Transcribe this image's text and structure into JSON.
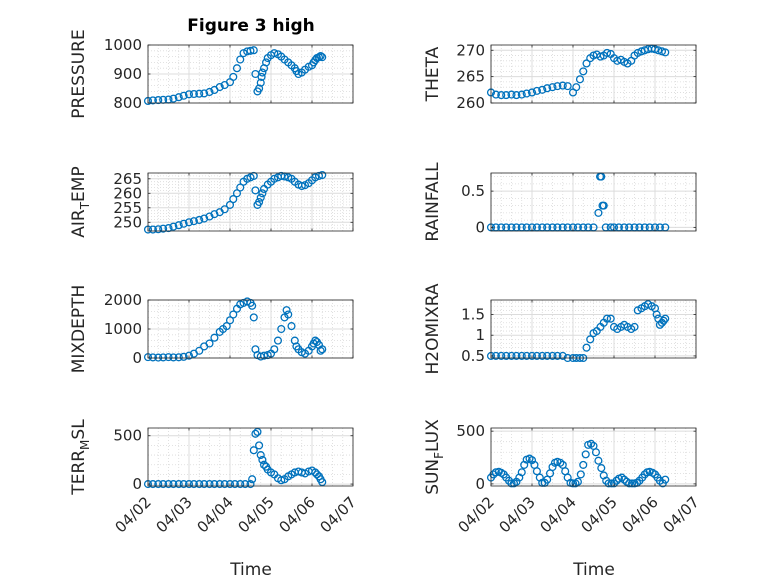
{
  "figure": {
    "title": "Figure 3 high",
    "xlabel": "Time",
    "marker_color": "#0072bd"
  },
  "chart_data": [
    {
      "type": "scatter",
      "ylabel": "PRESSURE",
      "ylabel_sub": "",
      "ylabel_post": "",
      "ylim": [
        800,
        1000
      ],
      "yticks": [
        800,
        900,
        1000
      ],
      "ytick_labels": [
        "800",
        "900",
        "1000"
      ],
      "xlim": [
        0,
        5
      ],
      "xticks": [
        0,
        1,
        2,
        3,
        4,
        5
      ],
      "xtick_labels": [],
      "grid": true,
      "x": [
        0,
        0.12,
        0.25,
        0.37,
        0.5,
        0.62,
        0.75,
        0.87,
        1,
        1.12,
        1.25,
        1.37,
        1.5,
        1.62,
        1.75,
        1.87,
        2,
        2.08,
        2.17,
        2.25,
        2.33,
        2.42,
        2.5,
        2.58,
        2.62,
        2.67,
        2.71,
        2.75,
        2.77,
        2.79,
        2.83,
        2.88,
        2.92,
        3,
        3.08,
        3.17,
        3.25,
        3.33,
        3.42,
        3.5,
        3.58,
        3.62,
        3.67,
        3.75,
        3.83,
        3.92,
        4,
        4.04,
        4.08,
        4.12,
        4.17,
        4.21,
        4.25
      ],
      "y": [
        807,
        809,
        810,
        811,
        812,
        815,
        820,
        825,
        830,
        831,
        832,
        833,
        838,
        845,
        855,
        862,
        872,
        890,
        920,
        950,
        972,
        978,
        980,
        982,
        900,
        840,
        850,
        870,
        890,
        905,
        920,
        940,
        955,
        965,
        972,
        968,
        960,
        950,
        940,
        930,
        920,
        910,
        900,
        905,
        915,
        925,
        930,
        940,
        948,
        955,
        958,
        962,
        958
      ]
    },
    {
      "type": "scatter",
      "ylabel": "THETA",
      "ylabel_sub": "",
      "ylabel_post": "",
      "ylim": [
        260,
        271
      ],
      "yticks": [
        260,
        265,
        270
      ],
      "ytick_labels": [
        "260",
        "265",
        "270"
      ],
      "xlim": [
        0,
        5
      ],
      "xticks": [
        0,
        1,
        2,
        3,
        4,
        5
      ],
      "xtick_labels": [],
      "grid": true,
      "x": [
        0,
        0.12,
        0.25,
        0.37,
        0.5,
        0.62,
        0.75,
        0.87,
        1,
        1.12,
        1.25,
        1.37,
        1.5,
        1.62,
        1.75,
        1.87,
        2,
        2.08,
        2.17,
        2.25,
        2.33,
        2.42,
        2.5,
        2.58,
        2.67,
        2.75,
        2.83,
        2.92,
        3,
        3.08,
        3.17,
        3.25,
        3.33,
        3.42,
        3.5,
        3.58,
        3.67,
        3.75,
        3.83,
        3.92,
        4,
        4.08,
        4.17,
        4.25
      ],
      "y": [
        262,
        261.6,
        261.5,
        261.5,
        261.6,
        261.5,
        261.6,
        261.8,
        262,
        262.3,
        262.5,
        262.8,
        263,
        263.2,
        263.3,
        263.2,
        262,
        263,
        264.5,
        266,
        267.5,
        268.5,
        269,
        269.2,
        268.8,
        269,
        269.5,
        269.3,
        268.5,
        268,
        268.2,
        267.8,
        267.5,
        268,
        269,
        269.5,
        269.8,
        270,
        270.2,
        270.3,
        270.2,
        270,
        269.8,
        269.6
      ]
    },
    {
      "type": "scatter",
      "ylabel": "AIR",
      "ylabel_sub": "T",
      "ylabel_post": "EMP",
      "ylim": [
        247,
        267
      ],
      "yticks": [
        250,
        255,
        260,
        265
      ],
      "ytick_labels": [
        "250",
        "255",
        "260",
        "265"
      ],
      "xlim": [
        0,
        5
      ],
      "xticks": [
        0,
        1,
        2,
        3,
        4,
        5
      ],
      "xtick_labels": [],
      "grid": true,
      "x": [
        0,
        0.12,
        0.25,
        0.37,
        0.5,
        0.62,
        0.75,
        0.87,
        1,
        1.12,
        1.25,
        1.37,
        1.5,
        1.62,
        1.75,
        1.87,
        2,
        2.08,
        2.17,
        2.25,
        2.33,
        2.42,
        2.5,
        2.58,
        2.62,
        2.67,
        2.71,
        2.75,
        2.79,
        2.83,
        2.92,
        3,
        3.08,
        3.17,
        3.25,
        3.33,
        3.42,
        3.5,
        3.58,
        3.67,
        3.75,
        3.83,
        3.92,
        4,
        4.08,
        4.17,
        4.25
      ],
      "y": [
        247.5,
        247.5,
        247.6,
        247.8,
        248,
        248.5,
        249,
        249.5,
        250,
        250.4,
        250.8,
        251.3,
        252,
        252.8,
        253.5,
        254.5,
        256,
        258,
        260,
        262,
        264,
        265,
        265.5,
        266,
        261,
        256,
        257,
        258.5,
        260,
        261.5,
        263,
        264,
        265,
        265.5,
        266,
        265.8,
        265.5,
        265,
        264,
        263,
        262.5,
        262.8,
        263.5,
        264.5,
        265.5,
        266,
        266.3
      ]
    },
    {
      "type": "scatter",
      "ylabel": "RAINFALL",
      "ylabel_sub": "",
      "ylabel_post": "",
      "ylim": [
        -0.05,
        0.75
      ],
      "yticks": [
        0,
        0.5
      ],
      "ytick_labels": [
        "0",
        "0.5"
      ],
      "xlim": [
        0,
        5
      ],
      "xticks": [
        0,
        1,
        2,
        3,
        4,
        5
      ],
      "xtick_labels": [],
      "grid": true,
      "x": [
        0,
        0.12,
        0.25,
        0.37,
        0.5,
        0.62,
        0.75,
        0.87,
        1,
        1.12,
        1.25,
        1.37,
        1.5,
        1.62,
        1.75,
        1.87,
        2,
        2.12,
        2.25,
        2.37,
        2.5,
        2.62,
        2.66,
        2.69,
        2.72,
        2.75,
        2.8,
        2.92,
        3,
        3.12,
        3.25,
        3.37,
        3.5,
        3.62,
        3.75,
        3.87,
        4,
        4.12,
        4.25
      ],
      "y": [
        0,
        0,
        0,
        0,
        0,
        0,
        0,
        0,
        0,
        0,
        0,
        0,
        0,
        0,
        0,
        0,
        0,
        0,
        0,
        0,
        0,
        0.2,
        0.7,
        0.7,
        0.3,
        0.3,
        0,
        0,
        0,
        0,
        0,
        0,
        0,
        0,
        0,
        0,
        0,
        0,
        0
      ]
    },
    {
      "type": "scatter",
      "ylabel": "MIXDEPTH",
      "ylabel_sub": "",
      "ylabel_post": "",
      "ylim": [
        0,
        2000
      ],
      "yticks": [
        0,
        1000,
        2000
      ],
      "ytick_labels": [
        "0",
        "1000",
        "2000"
      ],
      "xlim": [
        0,
        5
      ],
      "xticks": [
        0,
        1,
        2,
        3,
        4,
        5
      ],
      "xtick_labels": [],
      "grid": true,
      "x": [
        0,
        0.12,
        0.25,
        0.37,
        0.5,
        0.62,
        0.75,
        0.87,
        1,
        1.12,
        1.25,
        1.37,
        1.5,
        1.62,
        1.75,
        1.83,
        1.92,
        2,
        2.08,
        2.17,
        2.25,
        2.33,
        2.42,
        2.5,
        2.54,
        2.58,
        2.62,
        2.67,
        2.75,
        2.83,
        2.92,
        3,
        3.08,
        3.17,
        3.25,
        3.33,
        3.38,
        3.42,
        3.5,
        3.58,
        3.62,
        3.67,
        3.75,
        3.83,
        3.92,
        4,
        4.04,
        4.08,
        4.12,
        4.17,
        4.21,
        4.25
      ],
      "y": [
        30,
        20,
        15,
        20,
        30,
        20,
        25,
        40,
        80,
        150,
        250,
        400,
        500,
        700,
        900,
        1000,
        1100,
        1300,
        1500,
        1700,
        1850,
        1900,
        1950,
        1900,
        1800,
        1400,
        300,
        100,
        50,
        80,
        100,
        150,
        300,
        600,
        1000,
        1400,
        1650,
        1500,
        1100,
        600,
        400,
        300,
        200,
        150,
        250,
        400,
        500,
        600,
        550,
        450,
        250,
        300
      ]
    },
    {
      "type": "scatter",
      "ylabel": "H2OMIXRA",
      "ylabel_sub": "",
      "ylabel_post": "",
      "ylim": [
        0.45,
        1.85
      ],
      "yticks": [
        0.5,
        1,
        1.5
      ],
      "ytick_labels": [
        "0.5",
        "1",
        "1.5"
      ],
      "xlim": [
        0,
        5
      ],
      "xticks": [
        0,
        1,
        2,
        3,
        4,
        5
      ],
      "xtick_labels": [],
      "grid": true,
      "x": [
        0,
        0.12,
        0.25,
        0.37,
        0.5,
        0.62,
        0.75,
        0.87,
        1,
        1.12,
        1.25,
        1.37,
        1.5,
        1.62,
        1.75,
        1.87,
        2,
        2.08,
        2.17,
        2.25,
        2.33,
        2.42,
        2.5,
        2.58,
        2.67,
        2.75,
        2.83,
        2.92,
        3,
        3.08,
        3.17,
        3.25,
        3.33,
        3.42,
        3.5,
        3.58,
        3.67,
        3.75,
        3.83,
        3.92,
        4,
        4.04,
        4.08,
        4.12,
        4.17,
        4.21,
        4.25
      ],
      "y": [
        0.5,
        0.5,
        0.5,
        0.5,
        0.5,
        0.5,
        0.5,
        0.5,
        0.5,
        0.5,
        0.5,
        0.5,
        0.5,
        0.5,
        0.5,
        0.45,
        0.45,
        0.45,
        0.45,
        0.45,
        0.7,
        0.9,
        1.05,
        1.1,
        1.2,
        1.3,
        1.4,
        1.4,
        1.2,
        1.15,
        1.2,
        1.25,
        1.2,
        1.15,
        1.2,
        1.6,
        1.65,
        1.7,
        1.75,
        1.7,
        1.65,
        1.5,
        1.4,
        1.25,
        1.3,
        1.35,
        1.4
      ]
    },
    {
      "type": "scatter",
      "ylabel": "TERR",
      "ylabel_sub": "M",
      "ylabel_post": "SL",
      "ylim": [
        -20,
        580
      ],
      "yticks": [
        0,
        500
      ],
      "ytick_labels": [
        "0",
        "500"
      ],
      "xlim": [
        0,
        5
      ],
      "xticks": [
        0,
        1,
        2,
        3,
        4,
        5
      ],
      "xtick_labels": [
        "04/02",
        "04/03",
        "04/04",
        "04/05",
        "04/06",
        "04/07"
      ],
      "grid": true,
      "x": [
        0,
        0.12,
        0.25,
        0.37,
        0.5,
        0.62,
        0.75,
        0.87,
        1,
        1.12,
        1.25,
        1.37,
        1.5,
        1.62,
        1.75,
        1.87,
        2,
        2.12,
        2.25,
        2.37,
        2.5,
        2.54,
        2.58,
        2.62,
        2.67,
        2.71,
        2.75,
        2.79,
        2.83,
        2.88,
        2.92,
        3,
        3.08,
        3.17,
        3.25,
        3.33,
        3.42,
        3.5,
        3.58,
        3.67,
        3.75,
        3.83,
        3.92,
        4,
        4.08,
        4.12,
        4.17,
        4.21,
        4.25
      ],
      "y": [
        0,
        0,
        0,
        0,
        0,
        0,
        0,
        0,
        0,
        0,
        0,
        0,
        0,
        0,
        0,
        0,
        0,
        0,
        0,
        0,
        0,
        50,
        350,
        520,
        540,
        400,
        300,
        250,
        200,
        180,
        150,
        120,
        100,
        60,
        40,
        50,
        80,
        100,
        120,
        130,
        120,
        110,
        130,
        140,
        120,
        100,
        80,
        50,
        20
      ]
    },
    {
      "type": "scatter",
      "ylabel": "SUN",
      "ylabel_sub": "F",
      "ylabel_post": "LUX",
      "ylim": [
        -20,
        530
      ],
      "yticks": [
        0,
        500
      ],
      "ytick_labels": [
        "0",
        "500"
      ],
      "xlim": [
        0,
        5
      ],
      "xticks": [
        0,
        1,
        2,
        3,
        4,
        5
      ],
      "xtick_labels": [
        "04/02",
        "04/03",
        "04/04",
        "04/05",
        "04/06",
        "04/07"
      ],
      "grid": true,
      "x": [
        0,
        0.06,
        0.12,
        0.19,
        0.25,
        0.31,
        0.37,
        0.44,
        0.5,
        0.56,
        0.62,
        0.69,
        0.75,
        0.81,
        0.87,
        0.94,
        1,
        1.06,
        1.12,
        1.19,
        1.25,
        1.31,
        1.37,
        1.44,
        1.5,
        1.56,
        1.62,
        1.69,
        1.75,
        1.81,
        1.87,
        1.94,
        2,
        2.06,
        2.12,
        2.19,
        2.25,
        2.31,
        2.37,
        2.44,
        2.5,
        2.56,
        2.62,
        2.69,
        2.75,
        2.81,
        2.87,
        2.94,
        3,
        3.06,
        3.12,
        3.19,
        3.25,
        3.31,
        3.37,
        3.44,
        3.5,
        3.56,
        3.62,
        3.69,
        3.75,
        3.81,
        3.87,
        3.94,
        4,
        4.06,
        4.12,
        4.19,
        4.25
      ],
      "y": [
        60,
        90,
        110,
        115,
        105,
        90,
        60,
        30,
        5,
        5,
        20,
        60,
        110,
        180,
        230,
        240,
        225,
        180,
        120,
        60,
        10,
        10,
        40,
        100,
        160,
        200,
        210,
        200,
        180,
        120,
        60,
        10,
        5,
        5,
        20,
        90,
        180,
        280,
        370,
        380,
        360,
        300,
        220,
        150,
        80,
        30,
        5,
        5,
        5,
        30,
        50,
        60,
        40,
        20,
        5,
        5,
        5,
        10,
        30,
        60,
        90,
        110,
        115,
        105,
        90,
        60,
        30,
        5,
        40
      ]
    }
  ]
}
